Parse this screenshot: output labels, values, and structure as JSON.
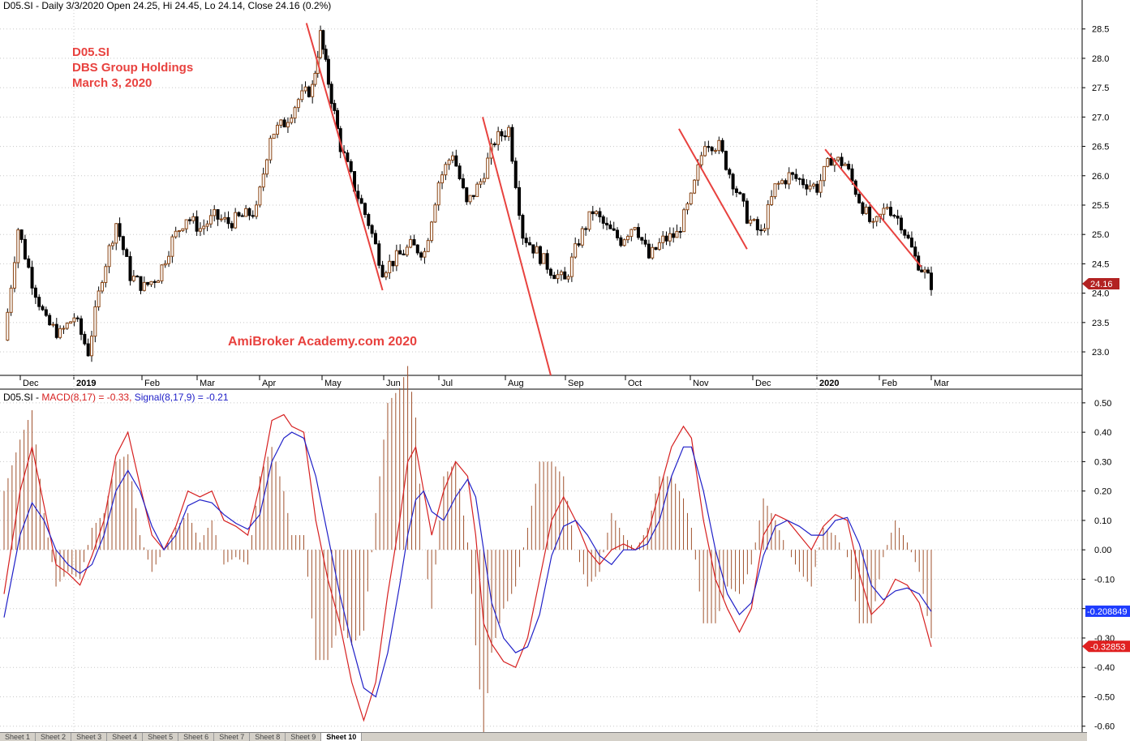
{
  "header": {
    "price_title": "D05.SI - Daily 3/3/2020 Open 24.25, Hi 24.45, Lo 24.14, Close 24.16 (0.2%)",
    "macd_prefix": "D05.SI - ",
    "macd_label": "MACD(8,17) = -0.33,",
    "signal_label": "Signal(8,17,9) = -0.21",
    "macd_color": "#d62020",
    "signal_color": "#2020c8"
  },
  "annotation": {
    "line1": "D05.SI",
    "line2": "DBS Group Holdings",
    "line3": "March 3, 2020",
    "watermark": "AmiBroker Academy.com  2020"
  },
  "tabs": [
    "Sheet 1",
    "Sheet 2",
    "Sheet 3",
    "Sheet 4",
    "Sheet 5",
    "Sheet 6",
    "Sheet 7",
    "Sheet 8",
    "Sheet 9",
    "Sheet 10"
  ],
  "chart_data": [
    {
      "type": "candlestick",
      "title": "D05.SI - Daily 3/3/2020",
      "ylim": [
        22.6,
        28.8
      ],
      "y_ticks": [
        23.0,
        23.5,
        24.0,
        24.5,
        25.0,
        25.5,
        26.0,
        26.5,
        27.0,
        27.5,
        28.0,
        28.5
      ],
      "x_ticks": [
        "Dec",
        "2019",
        "Feb",
        "Mar",
        "Apr",
        "May",
        "Jun",
        "Jul",
        "Aug",
        "Sep",
        "Oct",
        "Nov",
        "Dec",
        "2020",
        "Feb",
        "Mar"
      ],
      "last_close_label": "24.16",
      "close_path_approx": [
        {
          "date": "2018-11-26",
          "close": 23.2
        },
        {
          "date": "2018-12-03",
          "close": 25.1
        },
        {
          "date": "2018-12-10",
          "close": 24.2
        },
        {
          "date": "2018-12-17",
          "close": 23.5
        },
        {
          "date": "2018-12-24",
          "close": 23.3
        },
        {
          "date": "2018-12-31",
          "close": 23.6
        },
        {
          "date": "2019-01-07",
          "close": 23.0
        },
        {
          "date": "2019-01-14",
          "close": 24.3
        },
        {
          "date": "2019-01-21",
          "close": 25.2
        },
        {
          "date": "2019-01-28",
          "close": 24.3
        },
        {
          "date": "2019-02-04",
          "close": 24.1
        },
        {
          "date": "2019-02-11",
          "close": 24.3
        },
        {
          "date": "2019-02-18",
          "close": 24.9
        },
        {
          "date": "2019-02-25",
          "close": 25.3
        },
        {
          "date": "2019-03-04",
          "close": 25.1
        },
        {
          "date": "2019-03-11",
          "close": 25.3
        },
        {
          "date": "2019-03-18",
          "close": 25.2
        },
        {
          "date": "2019-03-25",
          "close": 25.3
        },
        {
          "date": "2019-04-01",
          "close": 25.4
        },
        {
          "date": "2019-04-08",
          "close": 26.7
        },
        {
          "date": "2019-04-15",
          "close": 26.9
        },
        {
          "date": "2019-04-22",
          "close": 27.3
        },
        {
          "date": "2019-04-29",
          "close": 27.5
        },
        {
          "date": "2019-05-03",
          "close": 28.4
        },
        {
          "date": "2019-05-07",
          "close": 27.6
        },
        {
          "date": "2019-05-13",
          "close": 26.5
        },
        {
          "date": "2019-05-20",
          "close": 25.8
        },
        {
          "date": "2019-05-27",
          "close": 25.2
        },
        {
          "date": "2019-06-03",
          "close": 24.4
        },
        {
          "date": "2019-06-10",
          "close": 24.6
        },
        {
          "date": "2019-06-17",
          "close": 24.8
        },
        {
          "date": "2019-06-24",
          "close": 24.7
        },
        {
          "date": "2019-07-01",
          "close": 25.9
        },
        {
          "date": "2019-07-08",
          "close": 26.4
        },
        {
          "date": "2019-07-15",
          "close": 25.5
        },
        {
          "date": "2019-07-22",
          "close": 25.9
        },
        {
          "date": "2019-07-29",
          "close": 26.6
        },
        {
          "date": "2019-08-05",
          "close": 26.8
        },
        {
          "date": "2019-08-12",
          "close": 25.0
        },
        {
          "date": "2019-08-19",
          "close": 24.7
        },
        {
          "date": "2019-08-26",
          "close": 24.4
        },
        {
          "date": "2019-09-02",
          "close": 24.2
        },
        {
          "date": "2019-09-09",
          "close": 24.9
        },
        {
          "date": "2019-09-16",
          "close": 25.4
        },
        {
          "date": "2019-09-23",
          "close": 25.1
        },
        {
          "date": "2019-09-30",
          "close": 24.9
        },
        {
          "date": "2019-10-07",
          "close": 25.2
        },
        {
          "date": "2019-10-14",
          "close": 24.6
        },
        {
          "date": "2019-10-21",
          "close": 24.9
        },
        {
          "date": "2019-10-28",
          "close": 25.0
        },
        {
          "date": "2019-11-04",
          "close": 25.6
        },
        {
          "date": "2019-11-11",
          "close": 26.6
        },
        {
          "date": "2019-11-18",
          "close": 26.5
        },
        {
          "date": "2019-11-25",
          "close": 25.9
        },
        {
          "date": "2019-12-02",
          "close": 25.3
        },
        {
          "date": "2019-12-09",
          "close": 25.0
        },
        {
          "date": "2019-12-16",
          "close": 25.8
        },
        {
          "date": "2019-12-23",
          "close": 26.0
        },
        {
          "date": "2019-12-30",
          "close": 25.9
        },
        {
          "date": "2020-01-06",
          "close": 25.8
        },
        {
          "date": "2020-01-13",
          "close": 26.3
        },
        {
          "date": "2020-01-20",
          "close": 26.2
        },
        {
          "date": "2020-01-27",
          "close": 25.6
        },
        {
          "date": "2020-02-03",
          "close": 25.1
        },
        {
          "date": "2020-02-10",
          "close": 25.5
        },
        {
          "date": "2020-02-17",
          "close": 25.2
        },
        {
          "date": "2020-02-24",
          "close": 24.6
        },
        {
          "date": "2020-03-03",
          "close": 24.16
        }
      ],
      "trendlines": [
        {
          "from": [
            "2019-04-26",
            28.6
          ],
          "to": [
            "2019-06-03",
            24.05
          ]
        },
        {
          "from": [
            "2019-07-23",
            27.0
          ],
          "to": [
            "2019-08-26",
            22.6
          ]
        },
        {
          "from": [
            "2019-10-29",
            26.8
          ],
          "to": [
            "2019-12-02",
            24.75
          ]
        },
        {
          "from": [
            "2020-01-10",
            26.45
          ],
          "to": [
            "2020-02-27",
            24.45
          ]
        }
      ]
    },
    {
      "type": "line",
      "title": "MACD(8,17), Signal(8,17,9)",
      "ylim": [
        -0.62,
        0.53
      ],
      "y_ticks": [
        0.5,
        0.4,
        0.3,
        0.2,
        0.1,
        0.0,
        -0.1,
        -0.2,
        -0.3,
        -0.4,
        -0.5,
        -0.6
      ],
      "series": [
        {
          "name": "MACD(8,17)",
          "color": "#d62020",
          "points": [
            [
              0,
              -0.15
            ],
            [
              4,
              0.2
            ],
            [
              7,
              0.35
            ],
            [
              10,
              0.15
            ],
            [
              13,
              -0.05
            ],
            [
              16,
              -0.08
            ],
            [
              19,
              -0.12
            ],
            [
              22,
              -0.02
            ],
            [
              25,
              0.1
            ],
            [
              28,
              0.32
            ],
            [
              31,
              0.4
            ],
            [
              34,
              0.22
            ],
            [
              37,
              0.05
            ],
            [
              40,
              0.0
            ],
            [
              43,
              0.08
            ],
            [
              46,
              0.2
            ],
            [
              49,
              0.18
            ],
            [
              52,
              0.2
            ],
            [
              55,
              0.1
            ],
            [
              58,
              0.08
            ],
            [
              61,
              0.05
            ],
            [
              64,
              0.22
            ],
            [
              67,
              0.44
            ],
            [
              70,
              0.46
            ],
            [
              72,
              0.42
            ],
            [
              75,
              0.4
            ],
            [
              78,
              0.1
            ],
            [
              81,
              -0.1
            ],
            [
              84,
              -0.25
            ],
            [
              87,
              -0.45
            ],
            [
              90,
              -0.58
            ],
            [
              93,
              -0.45
            ],
            [
              96,
              -0.15
            ],
            [
              99,
              0.1
            ],
            [
              101,
              0.3
            ],
            [
              103,
              0.35
            ],
            [
              105,
              0.2
            ],
            [
              107,
              0.05
            ],
            [
              110,
              0.2
            ],
            [
              113,
              0.3
            ],
            [
              116,
              0.25
            ],
            [
              118,
              0.05
            ],
            [
              120,
              -0.25
            ],
            [
              122,
              -0.32
            ],
            [
              125,
              -0.38
            ],
            [
              128,
              -0.4
            ],
            [
              131,
              -0.3
            ],
            [
              134,
              -0.1
            ],
            [
              137,
              0.1
            ],
            [
              140,
              0.18
            ],
            [
              143,
              0.1
            ],
            [
              146,
              0.0
            ],
            [
              149,
              -0.05
            ],
            [
              152,
              0.0
            ],
            [
              155,
              0.02
            ],
            [
              158,
              0.0
            ],
            [
              161,
              0.05
            ],
            [
              164,
              0.2
            ],
            [
              167,
              0.35
            ],
            [
              170,
              0.42
            ],
            [
              172,
              0.38
            ],
            [
              175,
              0.1
            ],
            [
              178,
              -0.1
            ],
            [
              181,
              -0.2
            ],
            [
              184,
              -0.28
            ],
            [
              187,
              -0.2
            ],
            [
              190,
              0.05
            ],
            [
              193,
              0.12
            ],
            [
              196,
              0.1
            ],
            [
              199,
              0.05
            ],
            [
              202,
              0.0
            ],
            [
              205,
              0.08
            ],
            [
              208,
              0.12
            ],
            [
              211,
              0.1
            ],
            [
              214,
              -0.08
            ],
            [
              217,
              -0.22
            ],
            [
              220,
              -0.18
            ],
            [
              223,
              -0.1
            ],
            [
              226,
              -0.12
            ],
            [
              229,
              -0.18
            ],
            [
              232,
              -0.33
            ]
          ]
        },
        {
          "name": "Signal(8,17,9)",
          "color": "#2020c8",
          "points": [
            [
              0,
              -0.23
            ],
            [
              4,
              0.05
            ],
            [
              7,
              0.16
            ],
            [
              10,
              0.1
            ],
            [
              13,
              0.0
            ],
            [
              16,
              -0.05
            ],
            [
              19,
              -0.08
            ],
            [
              22,
              -0.05
            ],
            [
              25,
              0.05
            ],
            [
              28,
              0.2
            ],
            [
              31,
              0.27
            ],
            [
              34,
              0.2
            ],
            [
              37,
              0.08
            ],
            [
              40,
              0.0
            ],
            [
              43,
              0.05
            ],
            [
              46,
              0.15
            ],
            [
              49,
              0.17
            ],
            [
              52,
              0.16
            ],
            [
              55,
              0.12
            ],
            [
              58,
              0.09
            ],
            [
              61,
              0.07
            ],
            [
              64,
              0.12
            ],
            [
              67,
              0.3
            ],
            [
              70,
              0.38
            ],
            [
              72,
              0.4
            ],
            [
              75,
              0.38
            ],
            [
              78,
              0.25
            ],
            [
              81,
              0.05
            ],
            [
              84,
              -0.15
            ],
            [
              87,
              -0.32
            ],
            [
              90,
              -0.47
            ],
            [
              93,
              -0.5
            ],
            [
              96,
              -0.35
            ],
            [
              99,
              -0.12
            ],
            [
              101,
              0.05
            ],
            [
              103,
              0.17
            ],
            [
              105,
              0.2
            ],
            [
              107,
              0.13
            ],
            [
              110,
              0.1
            ],
            [
              113,
              0.18
            ],
            [
              116,
              0.24
            ],
            [
              118,
              0.18
            ],
            [
              120,
              0.0
            ],
            [
              122,
              -0.18
            ],
            [
              125,
              -0.3
            ],
            [
              128,
              -0.35
            ],
            [
              131,
              -0.33
            ],
            [
              134,
              -0.22
            ],
            [
              137,
              -0.02
            ],
            [
              140,
              0.08
            ],
            [
              143,
              0.1
            ],
            [
              146,
              0.05
            ],
            [
              149,
              -0.02
            ],
            [
              152,
              -0.05
            ],
            [
              155,
              0.0
            ],
            [
              158,
              0.0
            ],
            [
              161,
              0.02
            ],
            [
              164,
              0.1
            ],
            [
              167,
              0.25
            ],
            [
              170,
              0.35
            ],
            [
              172,
              0.35
            ],
            [
              175,
              0.2
            ],
            [
              178,
              0.0
            ],
            [
              181,
              -0.15
            ],
            [
              184,
              -0.22
            ],
            [
              187,
              -0.18
            ],
            [
              190,
              -0.02
            ],
            [
              193,
              0.08
            ],
            [
              196,
              0.1
            ],
            [
              199,
              0.08
            ],
            [
              202,
              0.05
            ],
            [
              205,
              0.05
            ],
            [
              208,
              0.1
            ],
            [
              211,
              0.11
            ],
            [
              214,
              0.02
            ],
            [
              217,
              -0.12
            ],
            [
              220,
              -0.17
            ],
            [
              223,
              -0.14
            ],
            [
              226,
              -0.13
            ],
            [
              229,
              -0.15
            ],
            [
              232,
              -0.21
            ]
          ]
        }
      ],
      "macd_value_label": "-0.32853",
      "signal_value_label": "-0.208849"
    }
  ]
}
